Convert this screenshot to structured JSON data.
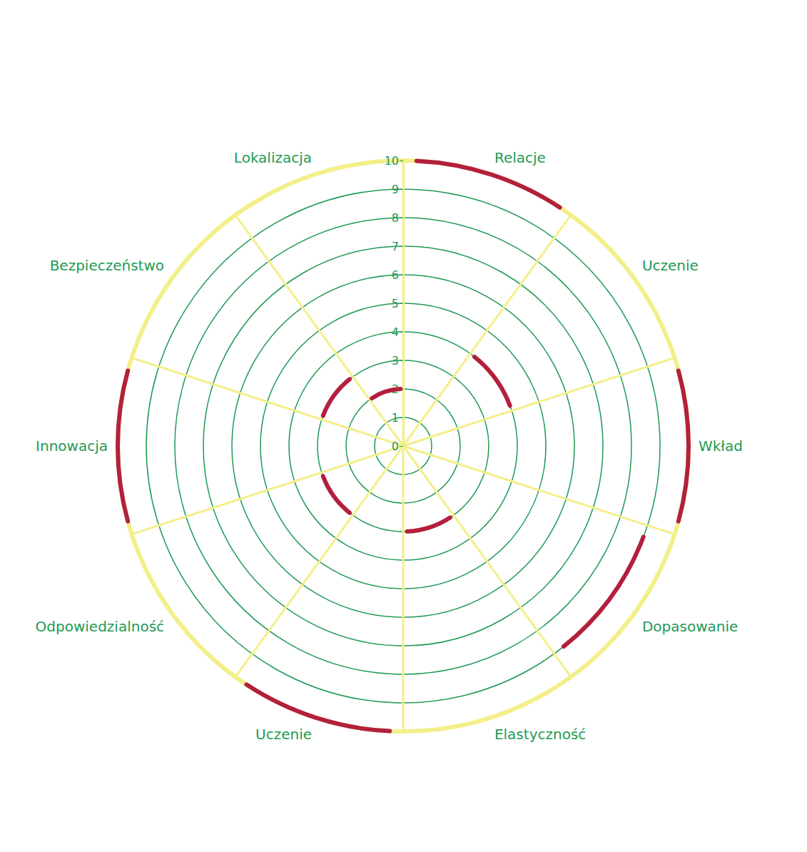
{
  "chart_data": {
    "type": "radar",
    "categories": [
      "Relacje",
      "Uczenie",
      "Wkład",
      "Dopasowanie",
      "Elastyczność",
      "Uczenie",
      "Odpowiedzialność",
      "Innowacja",
      "Bezpieczeństwo",
      "Lokalizacja"
    ],
    "values": [
      10,
      4,
      10,
      9,
      3,
      10,
      3,
      10,
      3,
      2
    ],
    "color": "#b3203c",
    "ylim": [
      0,
      10
    ],
    "yticks": [
      0,
      1,
      2,
      3,
      4,
      5,
      6,
      7,
      8,
      9,
      10
    ],
    "grid": true
  }
}
